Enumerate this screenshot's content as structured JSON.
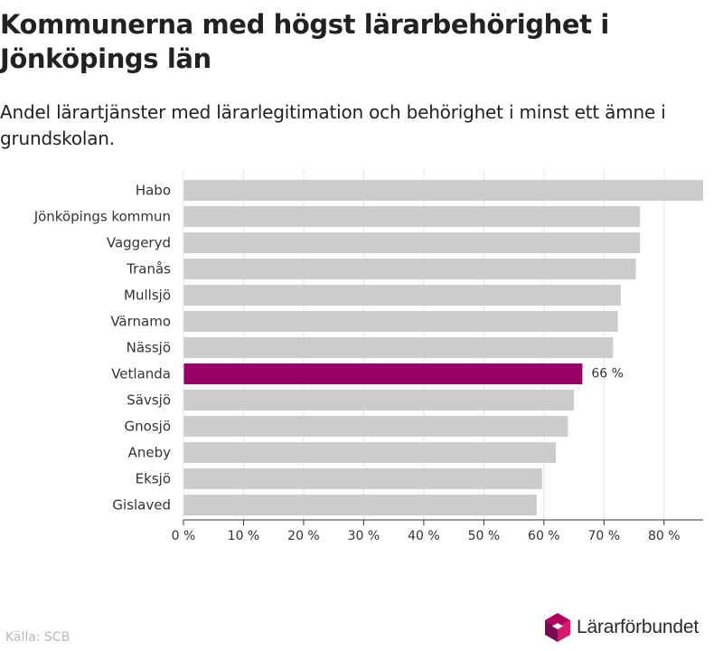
{
  "header": {
    "title": "Kommunerna med högst lärarbehörighet i Jönköpings län",
    "subtitle": "Andel lärartjänster med lärarlegitimation och behörighet i minst ett ämne i grundskolan."
  },
  "footer": {
    "source": "Källa: SCB",
    "logo_text": "Lärarförbundet"
  },
  "colors": {
    "bar": "#cccccc",
    "highlight": "#990066",
    "grid": "#e3e3e3",
    "axis": "#333333",
    "logo_top": "#b0005f",
    "logo_left": "#7a0a4f",
    "logo_right": "#d6186f"
  },
  "chart_data": {
    "type": "bar",
    "orientation": "horizontal",
    "categories": [
      "Habo",
      "Jönköpings kommun",
      "Vaggeryd",
      "Tranås",
      "Mullsjö",
      "Värnamo",
      "Nässjö",
      "Vetlanda",
      "Sävsjö",
      "Gnosjö",
      "Aneby",
      "Eksjö",
      "Gislaved"
    ],
    "values": [
      86.5,
      76,
      76,
      75.3,
      72.8,
      72.3,
      71.5,
      66.4,
      65,
      64,
      62,
      59.7,
      58.8
    ],
    "highlight": "Vetlanda",
    "highlight_label": "66 %",
    "xticks": [
      "0 %",
      "10 %",
      "20 %",
      "30 %",
      "40 %",
      "50 %",
      "60 %",
      "70 %",
      "80 %"
    ],
    "xlim": [
      0,
      86.5
    ],
    "grid": true
  }
}
